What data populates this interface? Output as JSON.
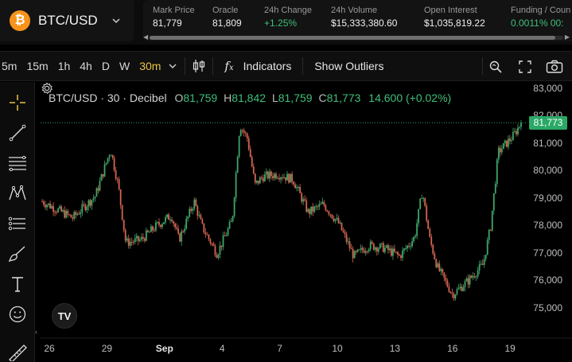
{
  "header": {
    "pair": "BTC/USD",
    "coin_glyph": "₿",
    "stats": [
      {
        "label": "Mark Price",
        "value": "81,779"
      },
      {
        "label": "Oracle",
        "value": "81,809"
      },
      {
        "label": "24h Change",
        "value": "+1.25%"
      },
      {
        "label": "24h Volume",
        "value": "$15,333,380.60"
      },
      {
        "label": "Open Interest",
        "value": "$1,035,819.22"
      },
      {
        "label": "Funding / Coun",
        "value": "0.0011%  00:"
      }
    ]
  },
  "toolbar": {
    "timeframes": [
      "5m",
      "15m",
      "1h",
      "4h",
      "D",
      "W",
      "30m"
    ],
    "active_timeframe": "30m",
    "indicators_label": "Indicators",
    "outliers_label": "Show Outliers",
    "icons": [
      "chevron-down-icon",
      "candles-icon",
      "fx-icon",
      "magnify-icon",
      "fullscreen-icon",
      "camera-icon"
    ]
  },
  "left_tools": [
    "crosshair-icon",
    "trendline-icon",
    "fib-icon",
    "pattern-icon",
    "measure-icon",
    "brush-icon",
    "text-icon",
    "emoji-icon",
    "ruler-icon"
  ],
  "legend": {
    "title": "BTC/USD · 30 · Decibel",
    "o_key": "O",
    "o_val": "81,759",
    "h_key": "H",
    "h_val": "81,842",
    "l_key": "L",
    "l_val": "81,759",
    "c_key": "C",
    "c_val": "81,773",
    "change": "14.600 (+0.02%)"
  },
  "logo_text": "TV",
  "current_price": "81,773",
  "colors": {
    "up": "#3fa66a",
    "down": "#d4654f",
    "accent": "#e8c34a",
    "price_tag": "#2aa866"
  },
  "chart_data": {
    "type": "candlestick",
    "yticks": [
      "83,000",
      "82,000",
      "81,000",
      "80,000",
      "79,000",
      "78,000",
      "77,000",
      "76,000",
      "75,000"
    ],
    "ylim": [
      74700,
      83200
    ],
    "xticks": [
      "26",
      "29",
      "Sep",
      "4",
      "7",
      "10",
      "13",
      "16",
      "19"
    ],
    "current_price": 81773,
    "anchors": [
      {
        "x": 0,
        "y": 78900
      },
      {
        "x": 4,
        "y": 78300
      },
      {
        "x": 7,
        "y": 79100
      },
      {
        "x": 9,
        "y": 80800
      },
      {
        "x": 10,
        "y": 79500
      },
      {
        "x": 11,
        "y": 77400
      },
      {
        "x": 13,
        "y": 77500
      },
      {
        "x": 15,
        "y": 78000
      },
      {
        "x": 17,
        "y": 78400
      },
      {
        "x": 18,
        "y": 77500
      },
      {
        "x": 19,
        "y": 78200
      },
      {
        "x": 20,
        "y": 78900
      },
      {
        "x": 21,
        "y": 78000
      },
      {
        "x": 23,
        "y": 77000
      },
      {
        "x": 25,
        "y": 78200
      },
      {
        "x": 26,
        "y": 81700
      },
      {
        "x": 27,
        "y": 81200
      },
      {
        "x": 28,
        "y": 79500
      },
      {
        "x": 29,
        "y": 79800
      },
      {
        "x": 31,
        "y": 79900
      },
      {
        "x": 33,
        "y": 79700
      },
      {
        "x": 35,
        "y": 78500
      },
      {
        "x": 37,
        "y": 78800
      },
      {
        "x": 39,
        "y": 78100
      },
      {
        "x": 41,
        "y": 76900
      },
      {
        "x": 43,
        "y": 77300
      },
      {
        "x": 45,
        "y": 77200
      },
      {
        "x": 47,
        "y": 76900
      },
      {
        "x": 49,
        "y": 77600
      },
      {
        "x": 50,
        "y": 79300
      },
      {
        "x": 51,
        "y": 77500
      },
      {
        "x": 52,
        "y": 76500
      },
      {
        "x": 54,
        "y": 75500
      },
      {
        "x": 56,
        "y": 76000
      },
      {
        "x": 58,
        "y": 76600
      },
      {
        "x": 59,
        "y": 78000
      },
      {
        "x": 60,
        "y": 80700
      },
      {
        "x": 62,
        "y": 81300
      },
      {
        "x": 63,
        "y": 81773
      }
    ]
  }
}
